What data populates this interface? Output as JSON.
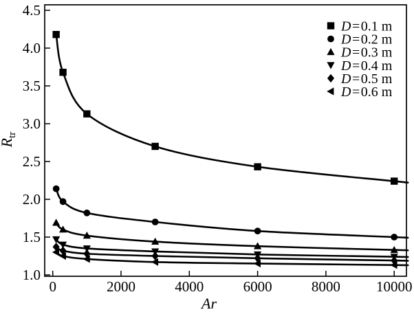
{
  "figure": {
    "background": "#ffffff",
    "ink": "#000000"
  },
  "chart_data": {
    "type": "line",
    "title": "",
    "xlabel": "Ar",
    "ylabel_base": "R",
    "ylabel_subscript": "tr",
    "xlim": [
      -240,
      10360
    ],
    "ylim": [
      0.98,
      4.59
    ],
    "x_tick_values": [
      0,
      2000,
      4000,
      6000,
      8000,
      10000
    ],
    "x_tick_labels": [
      "0",
      "2000",
      "4000",
      "6000",
      "8000",
      "10000"
    ],
    "y_tick_values": [
      1.0,
      1.5,
      2.0,
      2.5,
      3.0,
      3.5,
      4.0,
      4.5
    ],
    "y_tick_labels": [
      "1.0",
      "1.5",
      "2.0",
      "2.5",
      "3.0",
      "3.5",
      "4.0",
      "4.5"
    ],
    "grid": false,
    "legend_position": "top-right",
    "x": [
      100,
      300,
      1000,
      3000,
      6000,
      10000
    ],
    "series": [
      {
        "label": "D = 0.1 m",
        "label_var": "D",
        "label_eq": "=",
        "label_value": "0.1 m",
        "marker": "square",
        "values": [
          4.18,
          3.68,
          3.13,
          2.7,
          2.43,
          2.24
        ]
      },
      {
        "label": "D = 0.2 m",
        "label_var": "D",
        "label_eq": "=",
        "label_value": "0.2 m",
        "marker": "circle",
        "values": [
          2.14,
          1.97,
          1.82,
          1.7,
          1.58,
          1.5
        ]
      },
      {
        "label": "D = 0.3 m",
        "label_var": "D",
        "label_eq": "=",
        "label_value": "0.3 m",
        "marker": "triangle-up",
        "values": [
          1.69,
          1.6,
          1.52,
          1.44,
          1.38,
          1.33
        ]
      },
      {
        "label": "D = 0.4 m",
        "label_var": "D",
        "label_eq": "=",
        "label_value": "0.4 m",
        "marker": "triangle-down",
        "values": [
          1.47,
          1.4,
          1.35,
          1.31,
          1.27,
          1.24
        ]
      },
      {
        "label": "D = 0.5 m",
        "label_var": "D",
        "label_eq": "=",
        "label_value": "0.5 m",
        "marker": "diamond",
        "values": [
          1.37,
          1.32,
          1.28,
          1.25,
          1.22,
          1.19
        ]
      },
      {
        "label": "D = 0.6 m",
        "label_var": "D",
        "label_eq": "=",
        "label_value": "0.6 m",
        "marker": "triangle-left",
        "values": [
          1.3,
          1.25,
          1.21,
          1.17,
          1.15,
          1.13
        ]
      }
    ]
  }
}
